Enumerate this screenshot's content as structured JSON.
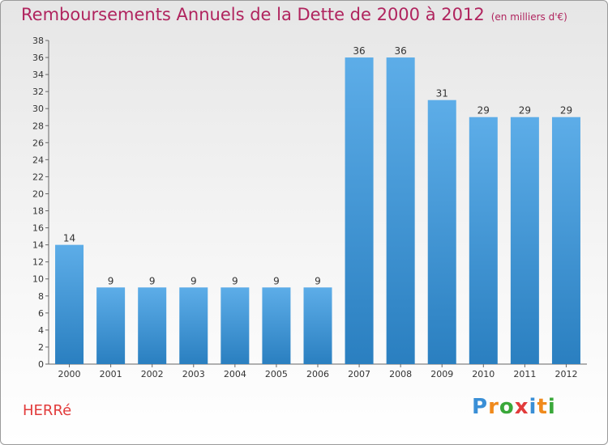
{
  "header": {
    "title": "Remboursements Annuels de la Dette de 2000 à 2012",
    "unit": "(en milliers d'€)"
  },
  "footer": {
    "commune": "HERRé",
    "logo_text": "Proxiti",
    "logo_colors": [
      "#3a8fd6",
      "#f08a1c",
      "#3aa83a",
      "#e23b3b",
      "#3a8fd6",
      "#f08a1c",
      "#3aa83a"
    ]
  },
  "colors": {
    "bar_light": "#5dade8",
    "bar_dark": "#2a7fc0",
    "title": "#b0245e",
    "commune": "#e23b3b"
  },
  "chart_data": {
    "type": "bar",
    "title": "Remboursements Annuels de la Dette de 2000 à 2012",
    "xlabel": "",
    "ylabel": "",
    "categories": [
      "2000",
      "2001",
      "2002",
      "2003",
      "2004",
      "2005",
      "2006",
      "2007",
      "2008",
      "2009",
      "2010",
      "2011",
      "2012"
    ],
    "values": [
      14,
      9,
      9,
      9,
      9,
      9,
      9,
      36,
      36,
      31,
      29,
      29,
      29
    ],
    "ylim": [
      0,
      38
    ],
    "yticks": [
      0,
      2,
      4,
      6,
      8,
      10,
      12,
      14,
      16,
      18,
      20,
      22,
      24,
      26,
      28,
      30,
      32,
      34,
      36,
      38
    ],
    "grid": false,
    "legend": "none"
  }
}
